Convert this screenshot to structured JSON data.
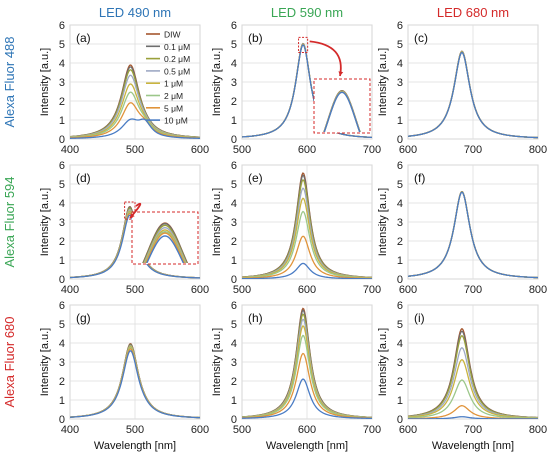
{
  "figure": {
    "column_titles": [
      "LED 490 nm",
      "LED 590 nm",
      "LED 680 nm"
    ],
    "column_colors": [
      "#2E75B6",
      "#3AA655",
      "#D42A2A"
    ],
    "row_titles": [
      "Alexa Fluor 488",
      "Alexa Fluor 594",
      "Alexa Fluor 680"
    ],
    "row_colors": [
      "#2E75B6",
      "#3AA655",
      "#D42A2A"
    ],
    "xlabel": "Wavelength [nm]",
    "ylabel": "Intensity [a.u.]",
    "inset_color": "#D42A2A",
    "arrow_color": "#D42A2A"
  },
  "chart_data": {
    "type": "line",
    "legend": {
      "placement": "top-right",
      "panel": "(a)",
      "entries": [
        "DIW",
        "0.1 μM",
        "0.2 μM",
        "0.5 μM",
        "1 μM",
        "2 μM",
        "5 μM",
        "10 μM"
      ]
    },
    "series_colors": [
      "#A5562E",
      "#6E6E6E",
      "#9AA03A",
      "#9EA9C4",
      "#C9B43F",
      "#9CC78A",
      "#E0933A",
      "#4A7CC4"
    ],
    "xlim_by_column": [
      [
        400,
        600
      ],
      [
        500,
        700
      ],
      [
        600,
        800
      ]
    ],
    "xticks_by_column": [
      [
        400,
        500,
        600
      ],
      [
        500,
        600,
        700
      ],
      [
        600,
        700,
        800
      ]
    ],
    "ylim": [
      0,
      6
    ],
    "yticks": [
      0,
      1,
      2,
      3,
      4,
      5,
      6
    ],
    "grid": true,
    "panels": [
      {
        "label": "(a)",
        "row": 0,
        "col": 0,
        "kind": "peak",
        "center": 493,
        "width": 17,
        "peaks": [
          3.88,
          3.78,
          3.62,
          3.32,
          2.85,
          2.4,
          1.82,
          0.88
        ],
        "shoulder_by_series": [
          0.06,
          0.08,
          0.1,
          0.15,
          0.2,
          0.28,
          0.38,
          0.7
        ],
        "inset": false
      },
      {
        "label": "(b)",
        "row": 0,
        "col": 1,
        "kind": "peak",
        "center": 594,
        "width": 14,
        "peaks": [
          5.02,
          5.01,
          5.0,
          4.99,
          4.98,
          4.97,
          4.96,
          4.95
        ],
        "inset": true
      },
      {
        "label": "(c)",
        "row": 0,
        "col": 2,
        "kind": "peak",
        "center": 683,
        "width": 15,
        "peaks": [
          4.62,
          4.61,
          4.6,
          4.59,
          4.58,
          4.57,
          4.56,
          4.55
        ],
        "inset": false
      },
      {
        "label": "(d)",
        "row": 1,
        "col": 0,
        "kind": "peak",
        "center": 492,
        "width": 14,
        "peaks": [
          3.8,
          3.78,
          3.72,
          3.64,
          3.56,
          3.5,
          3.45,
          3.35
        ],
        "shoulder_by_series": [
          0.05,
          0.05,
          0.05,
          0.05,
          0.05,
          0.05,
          0.05,
          0.05
        ],
        "inset": true
      },
      {
        "label": "(e)",
        "row": 1,
        "col": 1,
        "kind": "peak",
        "center": 594,
        "width": 13,
        "peaks": [
          5.58,
          5.46,
          5.22,
          4.78,
          4.25,
          3.55,
          2.25,
          0.82
        ],
        "inset": false
      },
      {
        "label": "(f)",
        "row": 1,
        "col": 2,
        "kind": "peak",
        "center": 683,
        "width": 15,
        "peaks": [
          4.6,
          4.6,
          4.6,
          4.59,
          4.59,
          4.58,
          4.58,
          4.57
        ],
        "inset": false
      },
      {
        "label": "(g)",
        "row": 2,
        "col": 0,
        "kind": "peak",
        "center": 493,
        "width": 15,
        "peaks": [
          3.95,
          3.92,
          3.88,
          3.84,
          3.8,
          3.74,
          3.68,
          3.58
        ],
        "shoulder_by_series": [
          0.05,
          0.05,
          0.05,
          0.05,
          0.05,
          0.05,
          0.05,
          0.05
        ],
        "inset": false
      },
      {
        "label": "(h)",
        "row": 2,
        "col": 1,
        "kind": "peak",
        "center": 594,
        "width": 13,
        "peaks": [
          5.82,
          5.72,
          5.52,
          5.25,
          4.9,
          4.4,
          3.45,
          2.1
        ],
        "inset": false
      },
      {
        "label": "(i)",
        "row": 2,
        "col": 2,
        "kind": "peak",
        "center": 683,
        "width": 15,
        "peaks": [
          4.75,
          4.62,
          4.38,
          3.75,
          3.12,
          2.05,
          0.7,
          0.12
        ],
        "inset": false
      }
    ]
  }
}
